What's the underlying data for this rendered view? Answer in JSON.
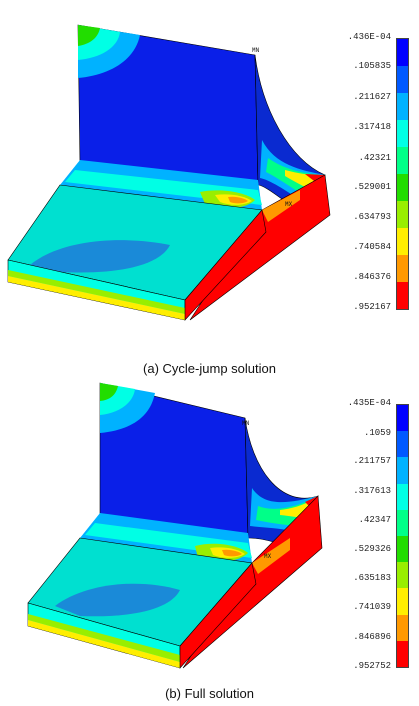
{
  "figures": [
    {
      "caption": "(a) Cycle-jump solution",
      "legend_values": [
        ".436E-04",
        ".105835",
        ".211627",
        ".317418",
        ".42321",
        ".529001",
        ".634793",
        ".740584",
        ".846376",
        ".952167"
      ],
      "node_labels": {
        "min": "MN",
        "max": "MX"
      }
    },
    {
      "caption": "(b) Full solution",
      "legend_values": [
        ".435E-04",
        ".1059",
        ".211757",
        ".317613",
        ".42347",
        ".529326",
        ".635183",
        ".741039",
        ".846896",
        ".952752"
      ],
      "node_labels": {
        "min": "MN",
        "max": "MX"
      }
    }
  ],
  "legend_colors": [
    "#0000ff",
    "#0059ff",
    "#00b2ff",
    "#00ffe5",
    "#00ff88",
    "#22dd00",
    "#99ee00",
    "#ffee00",
    "#ff9900",
    "#ff0000"
  ]
}
